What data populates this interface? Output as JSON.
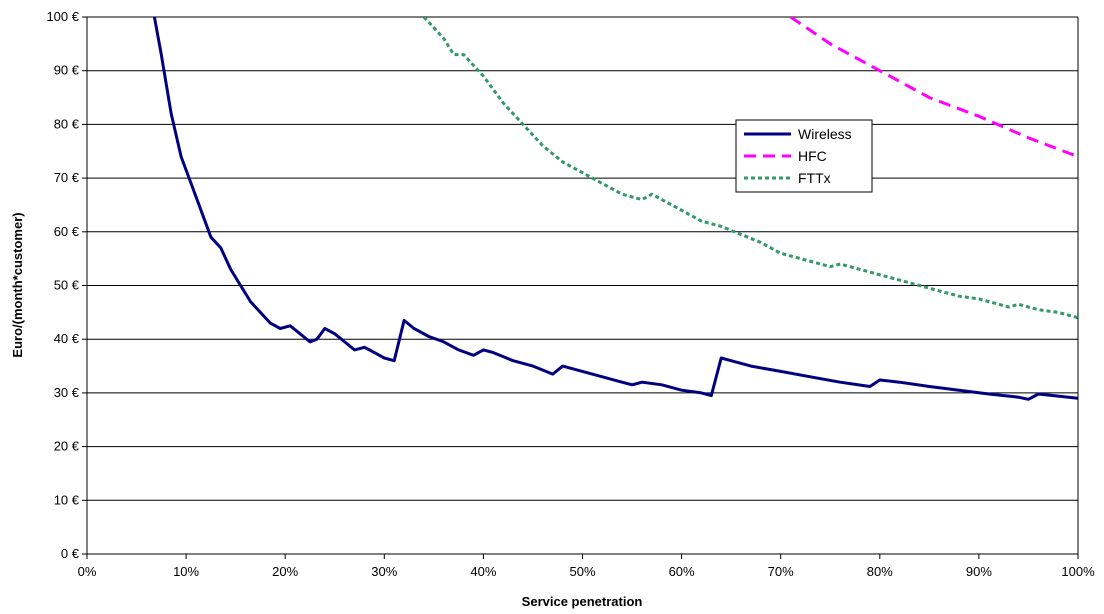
{
  "chart_data": {
    "type": "line",
    "xlabel": "Service penetration",
    "ylabel": "Euro/(month*customer)",
    "xlim": [
      0,
      100
    ],
    "ylim": [
      0,
      100
    ],
    "x_ticks": [
      "0%",
      "10%",
      "20%",
      "30%",
      "40%",
      "50%",
      "60%",
      "70%",
      "80%",
      "90%",
      "100%"
    ],
    "y_ticks": [
      "0 €",
      "10 €",
      "20 €",
      "30 €",
      "40 €",
      "50 €",
      "60 €",
      "70 €",
      "80 €",
      "90 €",
      "100 €"
    ],
    "grid": "horizontal",
    "legend_position": "top-right",
    "series": [
      {
        "name": "Wireless",
        "color": "#000080",
        "style": "solid",
        "x": [
          6.8,
          7.5,
          8.5,
          9.5,
          10.5,
          11.5,
          12.5,
          13.5,
          14.5,
          15.5,
          16.5,
          17.5,
          18.5,
          19.5,
          20.5,
          21.5,
          22.5,
          23.2,
          24.0,
          25.0,
          26.0,
          27.0,
          28.0,
          29.0,
          30.0,
          31.0,
          32.0,
          33.0,
          34.5,
          36.0,
          37.5,
          39.0,
          40.0,
          41.0,
          43.0,
          45.0,
          47.0,
          48.0,
          50.0,
          52.0,
          54.0,
          55.0,
          56.0,
          58.0,
          60.0,
          62.0,
          63.0,
          64.0,
          65.0,
          67.0,
          70.0,
          73.0,
          76.0,
          79.0,
          80.0,
          82.0,
          85.0,
          88.0,
          91.0,
          94.0,
          95.0,
          96.0,
          98.0,
          100.0
        ],
        "values": [
          100,
          93,
          82,
          74,
          69,
          64,
          59,
          57,
          53,
          50,
          47,
          45,
          43,
          42,
          42.5,
          41,
          39.5,
          40,
          42,
          41,
          39.5,
          38,
          38.5,
          37.5,
          36.5,
          36,
          43.5,
          42,
          40.5,
          39.5,
          38,
          37,
          38,
          37.5,
          36,
          35,
          33.5,
          35,
          34,
          33,
          32,
          31.5,
          32,
          31.5,
          30.5,
          30,
          29.5,
          36.5,
          36,
          35,
          34,
          33,
          32,
          31.2,
          32.4,
          32,
          31.2,
          30.5,
          29.8,
          29.2,
          28.8,
          29.8,
          29.4,
          29
        ]
      },
      {
        "name": "HFC",
        "color": "#FF00FF",
        "style": "dashed",
        "x": [
          71,
          75,
          80,
          85,
          90,
          95,
          100
        ],
        "values": [
          100,
          95,
          90,
          85,
          81.5,
          77.5,
          74
        ]
      },
      {
        "name": "FTTx",
        "color": "#339966",
        "style": "dotted",
        "x": [
          34,
          36,
          37,
          38,
          40,
          42,
          44,
          46,
          48,
          50,
          52,
          54,
          56,
          57,
          58,
          60,
          62,
          64,
          66,
          68,
          70,
          72,
          74,
          75,
          76,
          78,
          80,
          82,
          84,
          86,
          88,
          90,
          92,
          93,
          94,
          96,
          98,
          100
        ],
        "values": [
          100,
          96,
          93,
          93,
          89,
          84,
          80,
          76,
          73,
          71,
          69,
          67,
          66,
          67,
          66,
          64,
          62,
          61,
          59.5,
          58,
          56,
          55,
          54,
          53.5,
          54,
          53,
          52,
          51,
          50,
          49,
          48,
          47.5,
          46.5,
          46,
          46.5,
          45.5,
          45,
          44
        ]
      }
    ]
  }
}
